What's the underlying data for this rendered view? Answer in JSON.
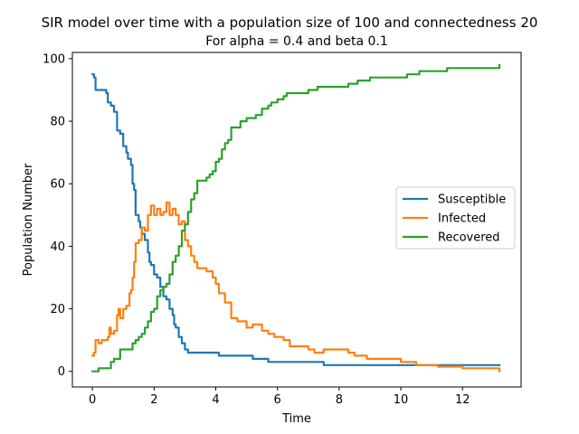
{
  "chart_data": {
    "type": "line",
    "suptitle": "SIR model over time with a population size of 100 and connectedness 20",
    "title": "For alpha = 0.4 and beta 0.1",
    "xlabel": "Time",
    "ylabel": "Population Number",
    "xlim": [
      -0.65,
      13.9
    ],
    "ylim": [
      -5,
      102
    ],
    "xticks": [
      0,
      2,
      4,
      6,
      8,
      10,
      12
    ],
    "yticks": [
      0,
      20,
      40,
      60,
      80,
      100
    ],
    "grid": false,
    "legend_position": "center-right",
    "series": [
      {
        "name": "Susceptible",
        "color": "#1f77b4",
        "points": [
          [
            0,
            95
          ],
          [
            0.05,
            94
          ],
          [
            0.1,
            90
          ],
          [
            0.3,
            90
          ],
          [
            0.45,
            89
          ],
          [
            0.5,
            86
          ],
          [
            0.6,
            85
          ],
          [
            0.7,
            83
          ],
          [
            0.8,
            77
          ],
          [
            0.9,
            76
          ],
          [
            1.0,
            72
          ],
          [
            1.1,
            70
          ],
          [
            1.15,
            68
          ],
          [
            1.25,
            66
          ],
          [
            1.3,
            60
          ],
          [
            1.35,
            58
          ],
          [
            1.4,
            50
          ],
          [
            1.5,
            48
          ],
          [
            1.55,
            46
          ],
          [
            1.6,
            44
          ],
          [
            1.7,
            42
          ],
          [
            1.8,
            38
          ],
          [
            1.85,
            35
          ],
          [
            1.9,
            34
          ],
          [
            2.0,
            31
          ],
          [
            2.1,
            30
          ],
          [
            2.2,
            27
          ],
          [
            2.3,
            24
          ],
          [
            2.4,
            23
          ],
          [
            2.5,
            20
          ],
          [
            2.6,
            18
          ],
          [
            2.65,
            15
          ],
          [
            2.7,
            14
          ],
          [
            2.8,
            11
          ],
          [
            2.9,
            9
          ],
          [
            3.0,
            7
          ],
          [
            3.1,
            6
          ],
          [
            4.0,
            6
          ],
          [
            4.1,
            5
          ],
          [
            5.0,
            5
          ],
          [
            5.2,
            4
          ],
          [
            5.6,
            4
          ],
          [
            5.7,
            3
          ],
          [
            7.3,
            3
          ],
          [
            7.5,
            2
          ],
          [
            13.2,
            2
          ]
        ]
      },
      {
        "name": "Infected",
        "color": "#ff7f0e",
        "points": [
          [
            0,
            5
          ],
          [
            0.05,
            6
          ],
          [
            0.1,
            10
          ],
          [
            0.2,
            9
          ],
          [
            0.3,
            10
          ],
          [
            0.5,
            11
          ],
          [
            0.55,
            14
          ],
          [
            0.6,
            12
          ],
          [
            0.7,
            13
          ],
          [
            0.8,
            18
          ],
          [
            0.85,
            20
          ],
          [
            0.9,
            17
          ],
          [
            1.0,
            20
          ],
          [
            1.1,
            21
          ],
          [
            1.2,
            25
          ],
          [
            1.25,
            26
          ],
          [
            1.3,
            30
          ],
          [
            1.35,
            35
          ],
          [
            1.4,
            41
          ],
          [
            1.5,
            42
          ],
          [
            1.6,
            46
          ],
          [
            1.7,
            45
          ],
          [
            1.8,
            50
          ],
          [
            1.9,
            53
          ],
          [
            2.0,
            50
          ],
          [
            2.1,
            52
          ],
          [
            2.2,
            50
          ],
          [
            2.3,
            51
          ],
          [
            2.4,
            54
          ],
          [
            2.5,
            50
          ],
          [
            2.6,
            52
          ],
          [
            2.7,
            50
          ],
          [
            2.8,
            47
          ],
          [
            2.9,
            48
          ],
          [
            3.0,
            42
          ],
          [
            3.1,
            40
          ],
          [
            3.2,
            37
          ],
          [
            3.3,
            35
          ],
          [
            3.4,
            33
          ],
          [
            3.7,
            32
          ],
          [
            3.9,
            30
          ],
          [
            4.0,
            28
          ],
          [
            4.1,
            25
          ],
          [
            4.3,
            22
          ],
          [
            4.5,
            17
          ],
          [
            4.7,
            16
          ],
          [
            5.0,
            14
          ],
          [
            5.2,
            15
          ],
          [
            5.5,
            13
          ],
          [
            5.7,
            12
          ],
          [
            5.9,
            11
          ],
          [
            6.2,
            10
          ],
          [
            6.4,
            8
          ],
          [
            7.0,
            7
          ],
          [
            7.2,
            6
          ],
          [
            7.5,
            7
          ],
          [
            8.3,
            6
          ],
          [
            8.5,
            5
          ],
          [
            8.9,
            4
          ],
          [
            10.0,
            3
          ],
          [
            10.5,
            2
          ],
          [
            11.2,
            1.5
          ],
          [
            12.0,
            1
          ],
          [
            13.2,
            0
          ]
        ]
      },
      {
        "name": "Recovered",
        "color": "#2ca02c",
        "points": [
          [
            0,
            0
          ],
          [
            0.1,
            0
          ],
          [
            0.2,
            1
          ],
          [
            0.5,
            1
          ],
          [
            0.6,
            3
          ],
          [
            0.7,
            4
          ],
          [
            0.85,
            4
          ],
          [
            0.9,
            7
          ],
          [
            1.2,
            7
          ],
          [
            1.3,
            9
          ],
          [
            1.4,
            10
          ],
          [
            1.5,
            11
          ],
          [
            1.6,
            12
          ],
          [
            1.7,
            14
          ],
          [
            1.8,
            16
          ],
          [
            1.9,
            19
          ],
          [
            2.0,
            20
          ],
          [
            2.1,
            24
          ],
          [
            2.2,
            26
          ],
          [
            2.3,
            27
          ],
          [
            2.4,
            28
          ],
          [
            2.5,
            31
          ],
          [
            2.6,
            35
          ],
          [
            2.7,
            37
          ],
          [
            2.8,
            40
          ],
          [
            2.9,
            45
          ],
          [
            3.0,
            47
          ],
          [
            3.1,
            51
          ],
          [
            3.2,
            55
          ],
          [
            3.3,
            57
          ],
          [
            3.4,
            61
          ],
          [
            3.7,
            62
          ],
          [
            3.8,
            63
          ],
          [
            3.9,
            64
          ],
          [
            4.0,
            67
          ],
          [
            4.1,
            68
          ],
          [
            4.2,
            71
          ],
          [
            4.3,
            73
          ],
          [
            4.4,
            74
          ],
          [
            4.5,
            78
          ],
          [
            4.8,
            80
          ],
          [
            5.0,
            81
          ],
          [
            5.3,
            82
          ],
          [
            5.5,
            84
          ],
          [
            5.7,
            85
          ],
          [
            5.8,
            86
          ],
          [
            6.0,
            87
          ],
          [
            6.2,
            88
          ],
          [
            6.3,
            89
          ],
          [
            7.0,
            90
          ],
          [
            7.3,
            91
          ],
          [
            7.5,
            91
          ],
          [
            8.3,
            92
          ],
          [
            8.6,
            93
          ],
          [
            9.0,
            94
          ],
          [
            10.2,
            95
          ],
          [
            10.6,
            96
          ],
          [
            11.5,
            97
          ],
          [
            13.2,
            98
          ]
        ]
      }
    ]
  }
}
